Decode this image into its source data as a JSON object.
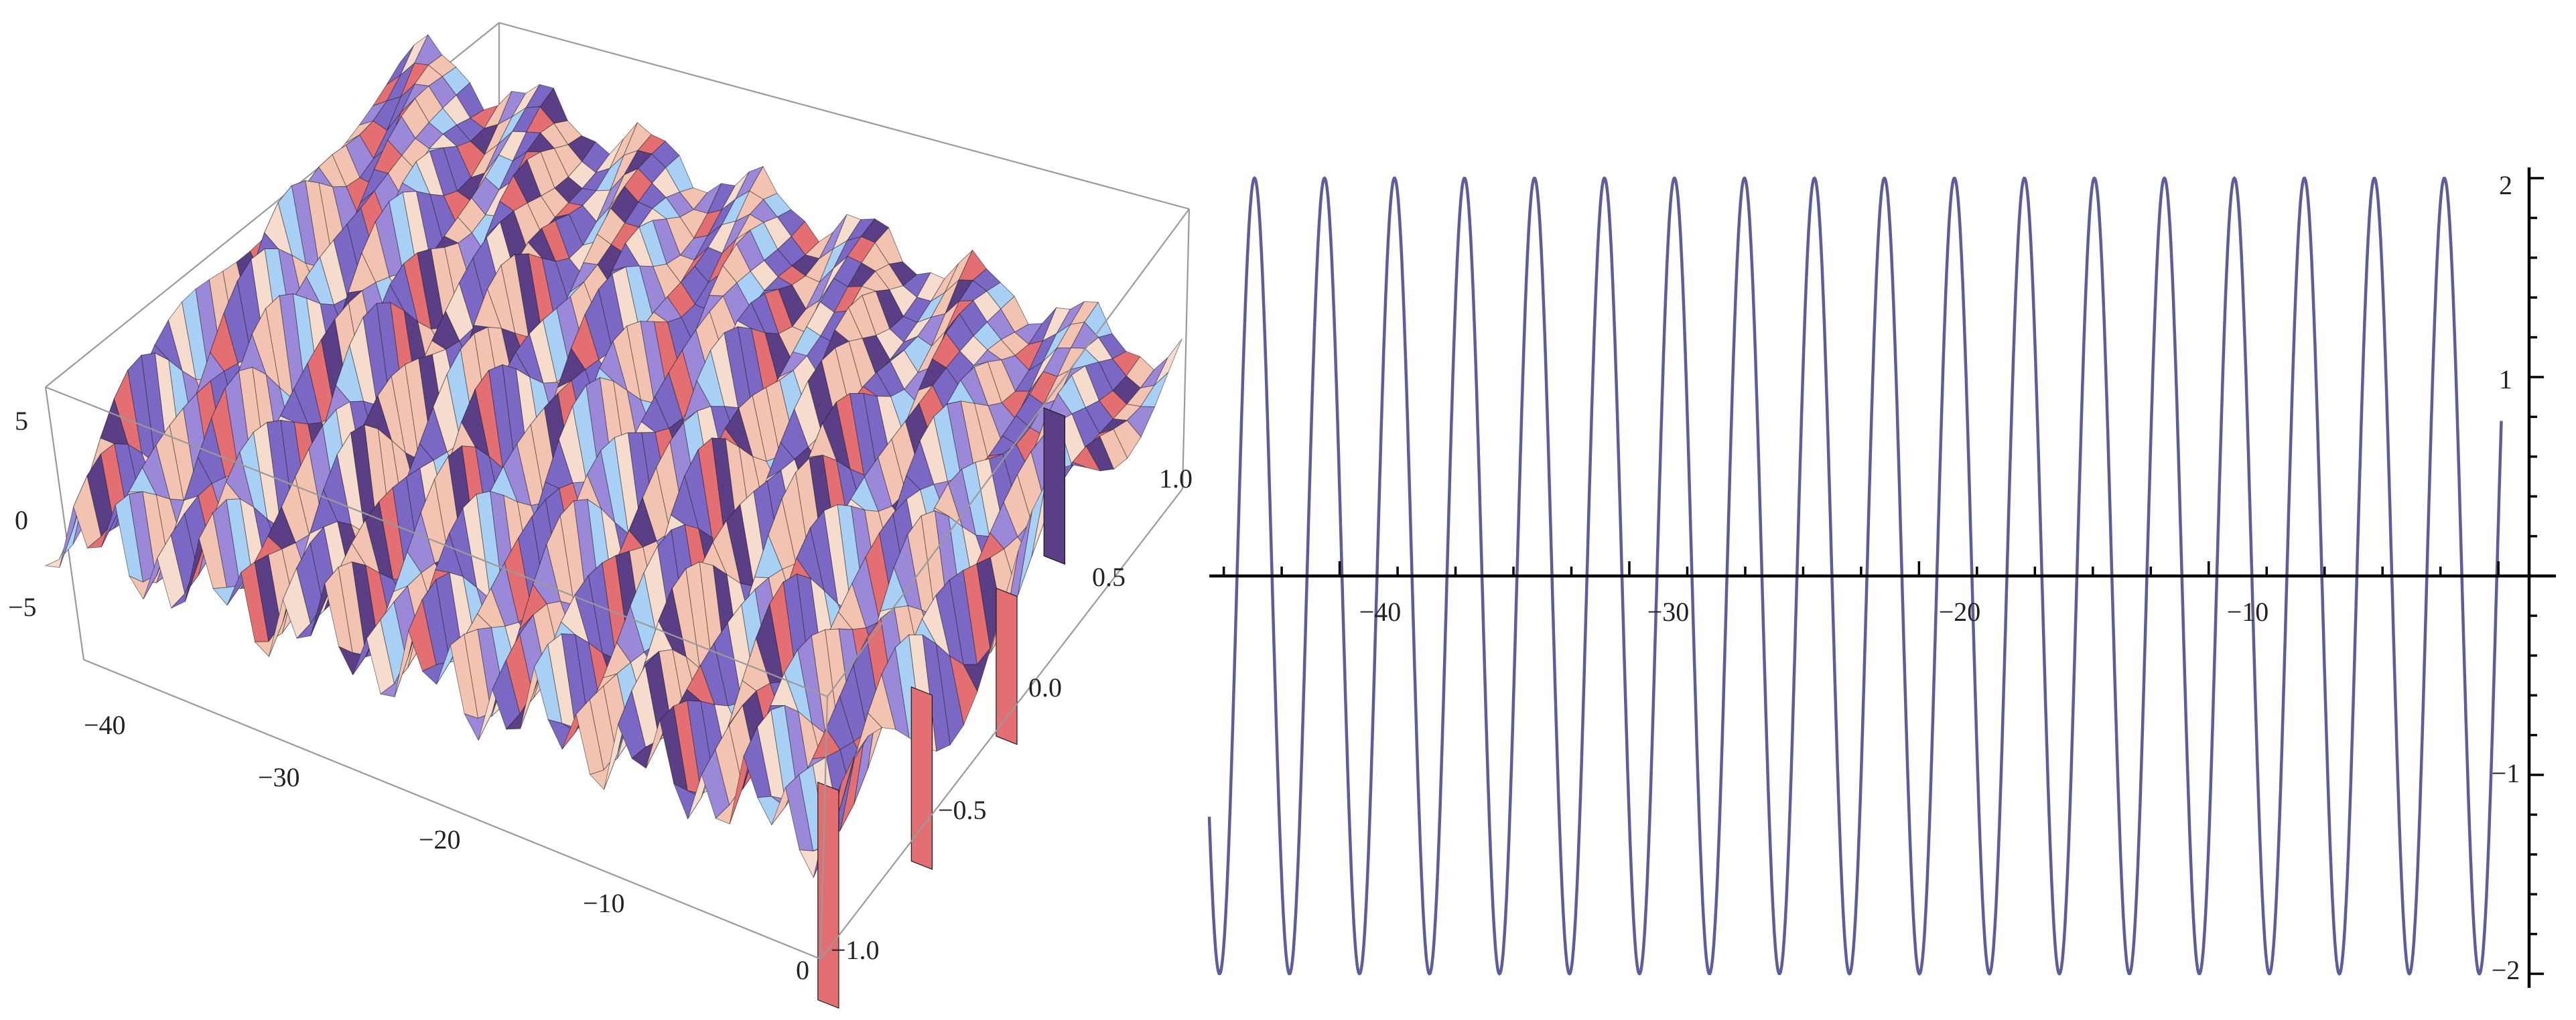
{
  "chart_data": [
    {
      "type": "surface3d",
      "title": "",
      "x_axis": {
        "label": "",
        "range": [
          -45,
          0
        ],
        "ticks": [
          -40,
          -30,
          -20,
          -10,
          0
        ],
        "tick_labels": [
          "−40",
          "−30",
          "−20",
          "−10",
          "0"
        ]
      },
      "y_axis": {
        "label": "",
        "range": [
          -1.0,
          1.0
        ],
        "ticks": [
          -1.0,
          -0.5,
          0.0,
          0.5,
          1.0
        ],
        "tick_labels": [
          "−1.0",
          "−0.5",
          "0.0",
          "0.5",
          "1.0"
        ]
      },
      "z_axis": {
        "label": "",
        "range": [
          -7,
          6
        ],
        "ticks": [
          -5,
          0,
          5
        ],
        "tick_labels": [
          "−5",
          "0",
          "5"
        ]
      },
      "box": true,
      "colors": {
        "peach": "#f2c3b0",
        "lavender": "#9b88d8",
        "purple": "#5a3f86",
        "sky": "#a8d0f5",
        "salmon": "#e46f73",
        "mesh": "#1a1a1a"
      }
    },
    {
      "type": "line",
      "title": "",
      "xlabel": "",
      "ylabel": "",
      "xlim": [
        -44.5,
        0.7
      ],
      "ylim": [
        -2,
        2
      ],
      "x_ticks": [
        -40,
        -30,
        -20,
        -10
      ],
      "x_tick_labels": [
        "−40",
        "−30",
        "−20",
        "−10"
      ],
      "y_ticks": [
        -2,
        -1,
        1,
        2
      ],
      "y_tick_labels": [
        "−2",
        "−1",
        "1",
        "2"
      ],
      "series": [
        {
          "function": "2*sin(2.6*x + 0.14)",
          "x_start": -44.5,
          "x_end": 0.1,
          "amplitude": 2,
          "period": 2.416,
          "color": "#5d5d9e"
        }
      ]
    }
  ]
}
